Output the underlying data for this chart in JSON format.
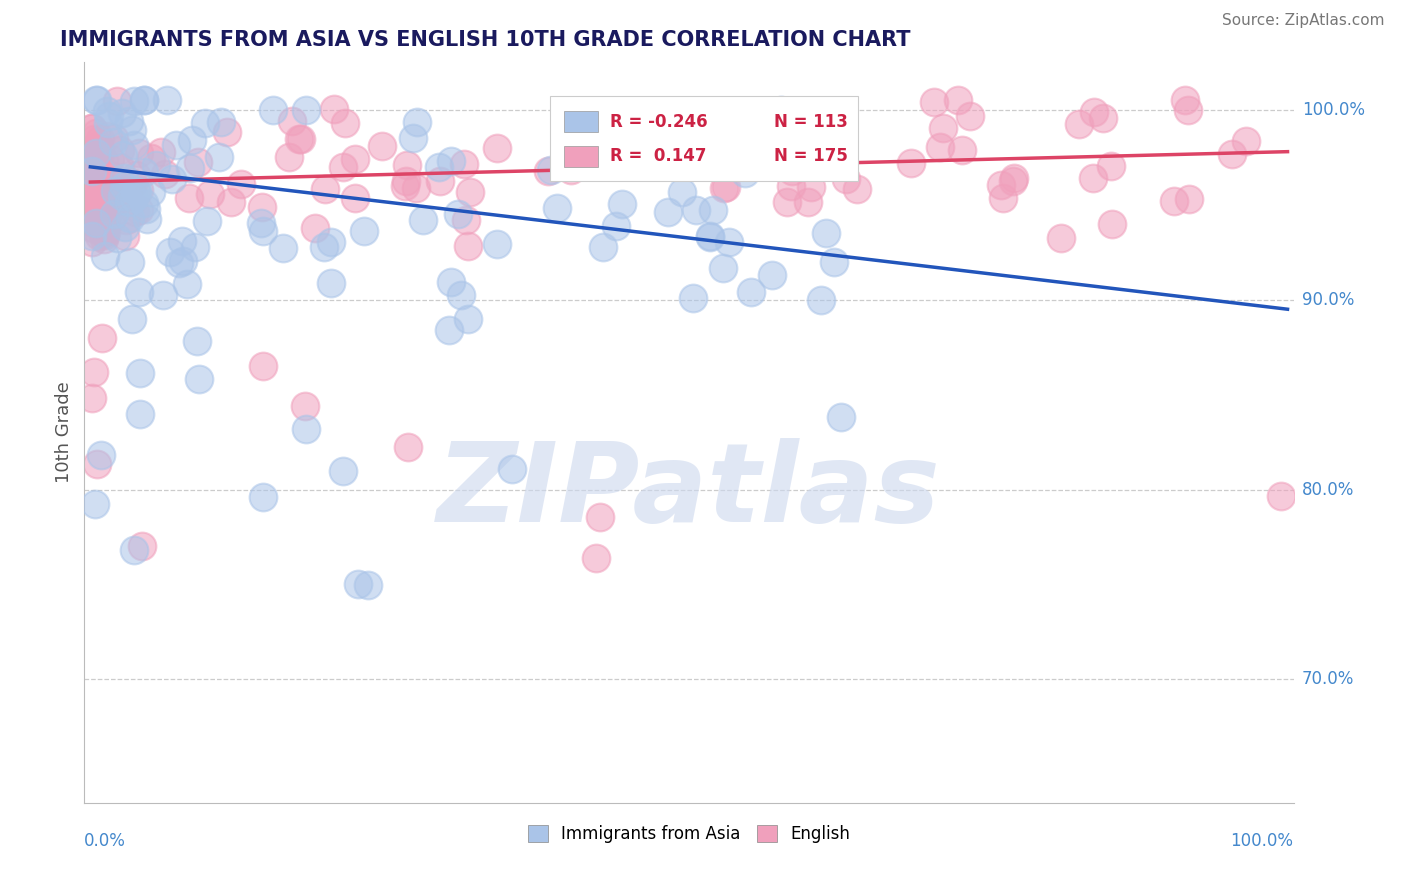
{
  "title": "IMMIGRANTS FROM ASIA VS ENGLISH 10TH GRADE CORRELATION CHART",
  "source_text": "Source: ZipAtlas.com",
  "ylabel": "10th Grade",
  "legend_label1": "Immigrants from Asia",
  "legend_label2": "English",
  "R1": -0.246,
  "N1": 113,
  "R2": 0.147,
  "N2": 175,
  "color_blue": "#aac4e8",
  "color_pink": "#f0a0bc",
  "line_color_blue": "#2255bb",
  "line_color_pink": "#dd4466",
  "background_color": "#ffffff",
  "grid_color": "#cccccc",
  "title_color": "#1a1a5e",
  "watermark_color": "#ccd8ee",
  "watermark_text": "ZIPatlas",
  "ylim_min": 0.635,
  "ylim_max": 1.025,
  "xlim_min": -0.005,
  "xlim_max": 1.005,
  "blue_line_x0": 0.0,
  "blue_line_x1": 1.0,
  "blue_line_y0": 0.97,
  "blue_line_y1": 0.895,
  "pink_line_x0": 0.0,
  "pink_line_x1": 1.0,
  "pink_line_y0": 0.962,
  "pink_line_y1": 0.978,
  "y_right_labels": [
    [
      "100.0%",
      1.0
    ],
    [
      "90.0%",
      0.9
    ],
    [
      "80.0%",
      0.8
    ],
    [
      "70.0%",
      0.7
    ]
  ],
  "right_label_color": "#4488cc"
}
